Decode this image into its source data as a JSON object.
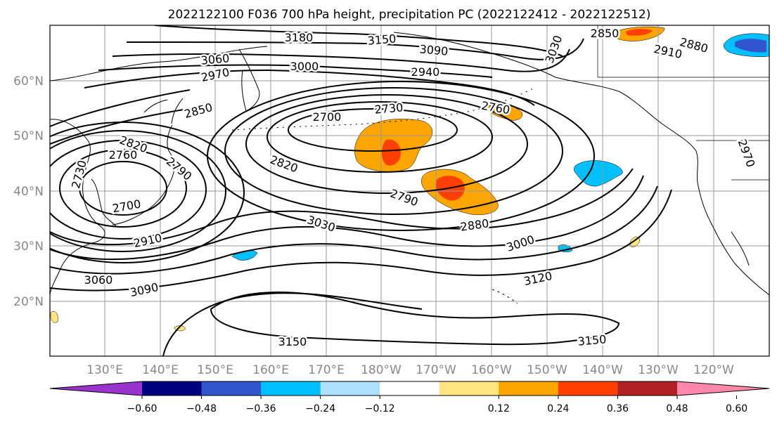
{
  "title": "2022122100 F036 700 hPa height, precipitation PC (2022122412 - 2022122512)",
  "lat_labels": [
    "60°N",
    "50°N",
    "40°N",
    "30°N",
    "20°N"
  ],
  "lon_labels": [
    "130°E",
    "140°E",
    "150°E",
    "160°E",
    "170°E",
    "180°W",
    "170°W",
    "160°W",
    "150°W",
    "140°W",
    "130°W",
    "120°W"
  ],
  "contour_labels": [
    "3180",
    "3150",
    "3090",
    "3060",
    "3030",
    "3000",
    "2970",
    "2940",
    "2880",
    "2910",
    "2850",
    "2820",
    "2760",
    "2730",
    "2700",
    "2790",
    "2760",
    "3120",
    "3030",
    "3000",
    "2880",
    "2910",
    "3060",
    "3090",
    "2730",
    "2790",
    "2820",
    "2700",
    "3150",
    "3150",
    "2970",
    "2850"
  ],
  "colorbar": {
    "tick_labels": [
      "−0.60",
      "−0.48",
      "−0.36",
      "−0.24",
      "−0.12",
      "0.12",
      "0.24",
      "0.36",
      "0.48",
      "0.60"
    ],
    "colors": [
      "#9933cc",
      "#000080",
      "#3355cc",
      "#00bfff",
      "#b0e0ff",
      "#ffffff",
      "#ffe680",
      "#ffa500",
      "#ff4000",
      "#b22222",
      "#ff88aa"
    ]
  },
  "colors": {
    "contour": "#000000",
    "coast": "#000000",
    "grid": "#999999",
    "axis_label": "#888888"
  }
}
